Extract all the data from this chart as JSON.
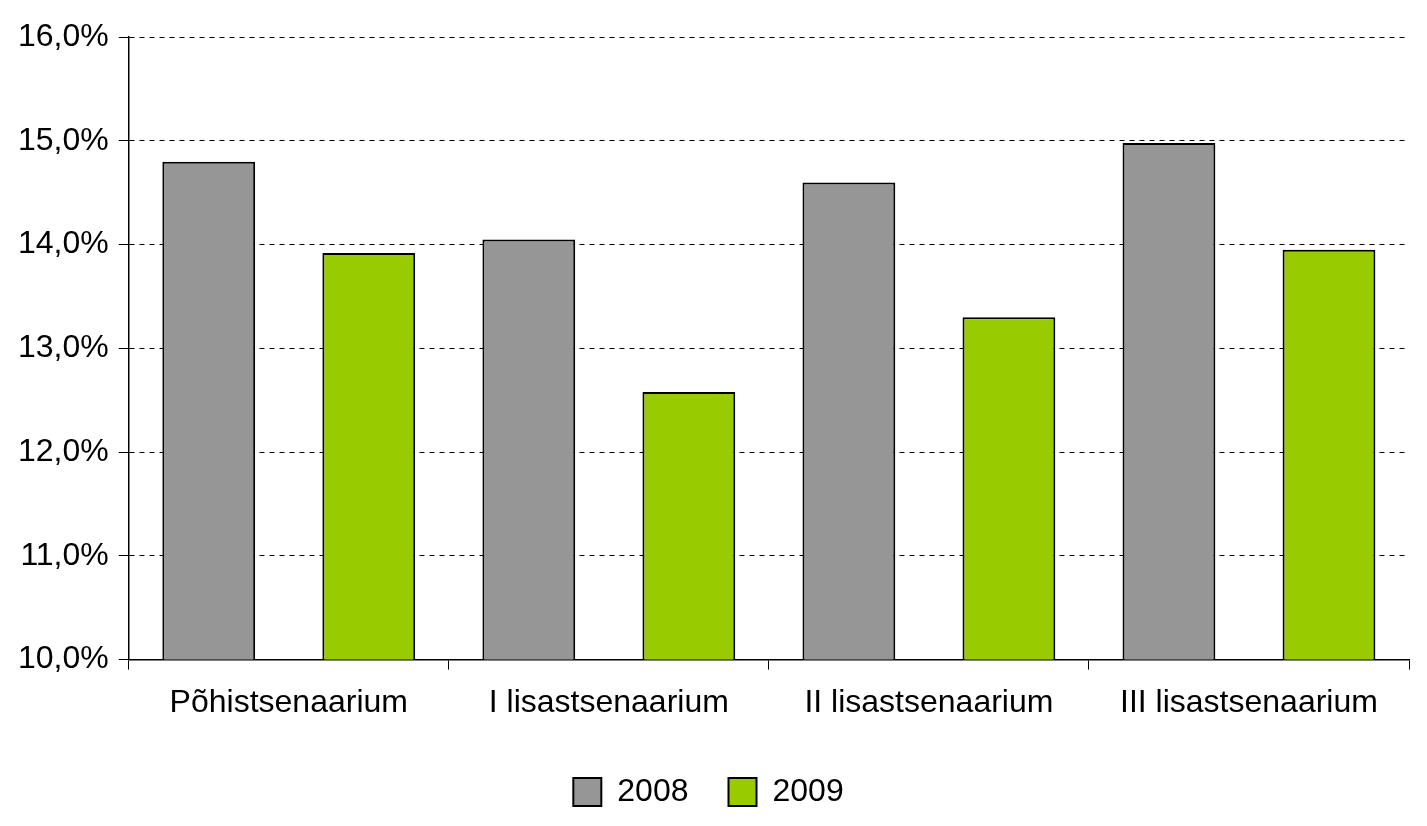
{
  "chart_data": {
    "type": "bar",
    "categories": [
      "Põhistsenaarium",
      "I lisastsenaarium",
      "II lisastsenaarium",
      "III lisastsenaarium"
    ],
    "series": [
      {
        "name": "2008",
        "color": "#969696",
        "values": [
          14.8,
          14.05,
          14.6,
          14.98
        ]
      },
      {
        "name": "2009",
        "color": "#99cc00",
        "values": [
          13.92,
          12.58,
          13.3,
          13.95
        ]
      }
    ],
    "ylim": [
      10,
      16
    ],
    "yticks": [
      {
        "value": 10,
        "label": "10,0%"
      },
      {
        "value": 11,
        "label": "11,0%"
      },
      {
        "value": 12,
        "label": "12,0%"
      },
      {
        "value": 13,
        "label": "13,0%"
      },
      {
        "value": 14,
        "label": "14,0%"
      },
      {
        "value": 15,
        "label": "15,0%"
      },
      {
        "value": 16,
        "label": "16,0%"
      }
    ],
    "grid": "y",
    "legend": "bottom"
  }
}
